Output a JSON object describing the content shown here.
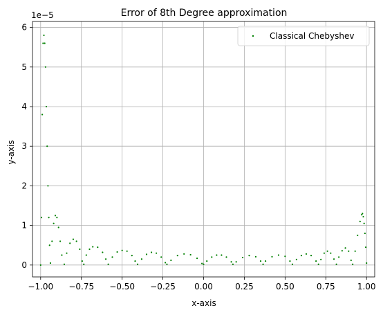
{
  "chart_data": {
    "type": "scatter",
    "title": "Error of 8th Degree approximation",
    "xlabel": "x-axis",
    "ylabel": "y-axis",
    "y_offset_text": "1e−5",
    "xlim": [
      -1.05,
      1.05
    ],
    "ylim": [
      -0.3,
      6.15
    ],
    "y_unit_multiplier": 1e-05,
    "grid": true,
    "legend_position": "upper right",
    "x_ticks": [
      -1.0,
      -0.75,
      -0.5,
      -0.25,
      0.0,
      0.25,
      0.5,
      0.75,
      1.0
    ],
    "x_tick_labels": [
      "−1.00",
      "−0.75",
      "−0.50",
      "−0.25",
      "0.00",
      "0.25",
      "0.50",
      "0.75",
      "1.00"
    ],
    "y_ticks": [
      0,
      1,
      2,
      3,
      4,
      5,
      6
    ],
    "y_tick_labels": [
      "0",
      "1",
      "2",
      "3",
      "4",
      "5",
      "6"
    ],
    "series": [
      {
        "name": "Classical Chebyshev",
        "color": "#008000",
        "marker": "point",
        "points": [
          [
            -1.0,
            0.0
          ],
          [
            -0.995,
            1.2
          ],
          [
            -0.99,
            3.8
          ],
          [
            -0.985,
            5.6
          ],
          [
            -0.98,
            5.8
          ],
          [
            -0.975,
            5.6
          ],
          [
            -0.97,
            5.0
          ],
          [
            -0.965,
            4.0
          ],
          [
            -0.96,
            3.0
          ],
          [
            -0.955,
            2.0
          ],
          [
            -0.95,
            1.2
          ],
          [
            -0.945,
            0.5
          ],
          [
            -0.94,
            0.05
          ],
          [
            -0.93,
            0.6
          ],
          [
            -0.92,
            1.05
          ],
          [
            -0.91,
            1.25
          ],
          [
            -0.9,
            1.2
          ],
          [
            -0.89,
            0.95
          ],
          [
            -0.88,
            0.6
          ],
          [
            -0.87,
            0.25
          ],
          [
            -0.855,
            0.02
          ],
          [
            -0.84,
            0.3
          ],
          [
            -0.82,
            0.55
          ],
          [
            -0.8,
            0.65
          ],
          [
            -0.78,
            0.6
          ],
          [
            -0.76,
            0.4
          ],
          [
            -0.745,
            0.1
          ],
          [
            -0.735,
            0.02
          ],
          [
            -0.72,
            0.25
          ],
          [
            -0.7,
            0.4
          ],
          [
            -0.68,
            0.46
          ],
          [
            -0.65,
            0.45
          ],
          [
            -0.62,
            0.32
          ],
          [
            -0.6,
            0.15
          ],
          [
            -0.585,
            0.02
          ],
          [
            -0.56,
            0.2
          ],
          [
            -0.53,
            0.33
          ],
          [
            -0.5,
            0.37
          ],
          [
            -0.47,
            0.35
          ],
          [
            -0.44,
            0.24
          ],
          [
            -0.42,
            0.1
          ],
          [
            -0.405,
            0.02
          ],
          [
            -0.38,
            0.15
          ],
          [
            -0.35,
            0.27
          ],
          [
            -0.32,
            0.32
          ],
          [
            -0.29,
            0.3
          ],
          [
            -0.26,
            0.2
          ],
          [
            -0.235,
            0.06
          ],
          [
            -0.225,
            0.02
          ],
          [
            -0.2,
            0.12
          ],
          [
            -0.16,
            0.24
          ],
          [
            -0.12,
            0.28
          ],
          [
            -0.08,
            0.26
          ],
          [
            -0.04,
            0.17
          ],
          [
            -0.01,
            0.04
          ],
          [
            0.0,
            0.02
          ],
          [
            0.02,
            0.1
          ],
          [
            0.05,
            0.2
          ],
          [
            0.08,
            0.25
          ],
          [
            0.11,
            0.25
          ],
          [
            0.14,
            0.2
          ],
          [
            0.17,
            0.08
          ],
          [
            0.18,
            0.02
          ],
          [
            0.2,
            0.08
          ],
          [
            0.24,
            0.19
          ],
          [
            0.28,
            0.24
          ],
          [
            0.32,
            0.21
          ],
          [
            0.35,
            0.1
          ],
          [
            0.365,
            0.02
          ],
          [
            0.38,
            0.1
          ],
          [
            0.42,
            0.21
          ],
          [
            0.46,
            0.25
          ],
          [
            0.5,
            0.22
          ],
          [
            0.53,
            0.1
          ],
          [
            0.545,
            0.02
          ],
          [
            0.57,
            0.14
          ],
          [
            0.6,
            0.24
          ],
          [
            0.63,
            0.28
          ],
          [
            0.66,
            0.24
          ],
          [
            0.69,
            0.1
          ],
          [
            0.705,
            0.02
          ],
          [
            0.72,
            0.14
          ],
          [
            0.74,
            0.3
          ],
          [
            0.76,
            0.35
          ],
          [
            0.78,
            0.3
          ],
          [
            0.8,
            0.15
          ],
          [
            0.815,
            0.02
          ],
          [
            0.83,
            0.2
          ],
          [
            0.85,
            0.36
          ],
          [
            0.87,
            0.43
          ],
          [
            0.89,
            0.35
          ],
          [
            0.905,
            0.12
          ],
          [
            0.915,
            0.02
          ],
          [
            0.93,
            0.35
          ],
          [
            0.945,
            0.75
          ],
          [
            0.96,
            1.1
          ],
          [
            0.97,
            1.27
          ],
          [
            0.975,
            1.3
          ],
          [
            0.98,
            1.22
          ],
          [
            0.985,
            1.05
          ],
          [
            0.99,
            0.8
          ],
          [
            0.995,
            0.45
          ],
          [
            1.0,
            0.05
          ]
        ]
      }
    ]
  }
}
